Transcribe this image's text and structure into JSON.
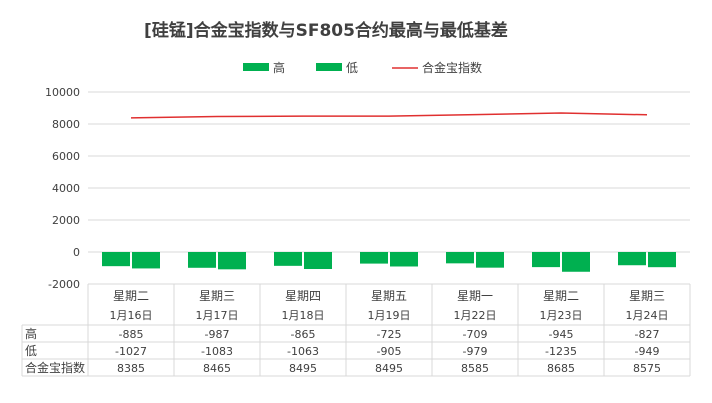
{
  "chart_data": {
    "type": "bar",
    "title": "[硅锰]合金宝指数与SF805合约最高与最低基差",
    "legend": [
      "高",
      "低",
      "合金宝指数"
    ],
    "legend_position": "top",
    "categories": [
      {
        "weekday": "星期二",
        "date": "1月16日"
      },
      {
        "weekday": "星期三",
        "date": "1月17日"
      },
      {
        "weekday": "星期四",
        "date": "1月18日"
      },
      {
        "weekday": "星期五",
        "date": "1月19日"
      },
      {
        "weekday": "星期一",
        "date": "1月22日"
      },
      {
        "weekday": "星期二",
        "date": "1月23日"
      },
      {
        "weekday": "星期三",
        "date": "1月24日"
      }
    ],
    "series": [
      {
        "name": "高",
        "type": "bar",
        "color": "#00b050",
        "values": [
          -885,
          -987,
          -865,
          -725,
          -709,
          -945,
          -827
        ]
      },
      {
        "name": "低",
        "type": "bar",
        "color": "#00b050",
        "values": [
          -1027,
          -1083,
          -1063,
          -905,
          -979,
          -1235,
          -949
        ]
      },
      {
        "name": "合金宝指数",
        "type": "line",
        "color": "#e03030",
        "values": [
          8385,
          8465,
          8495,
          8495,
          8585,
          8685,
          8575
        ]
      }
    ],
    "yticks": [
      "10000",
      "8000",
      "6000",
      "4000",
      "2000",
      "0",
      "-2000"
    ],
    "ylim": [
      -2000,
      10000
    ],
    "grid": true,
    "data_table": {
      "row_labels": [
        "高",
        "低",
        "合金宝指数"
      ],
      "rows": [
        [
          "-885",
          "-987",
          "-865",
          "-725",
          "-709",
          "-945",
          "-827"
        ],
        [
          "-1027",
          "-1083",
          "-1063",
          "-905",
          "-979",
          "-1235",
          "-949"
        ],
        [
          "8385",
          "8465",
          "8495",
          "8495",
          "8585",
          "8685",
          "8575"
        ]
      ]
    }
  }
}
